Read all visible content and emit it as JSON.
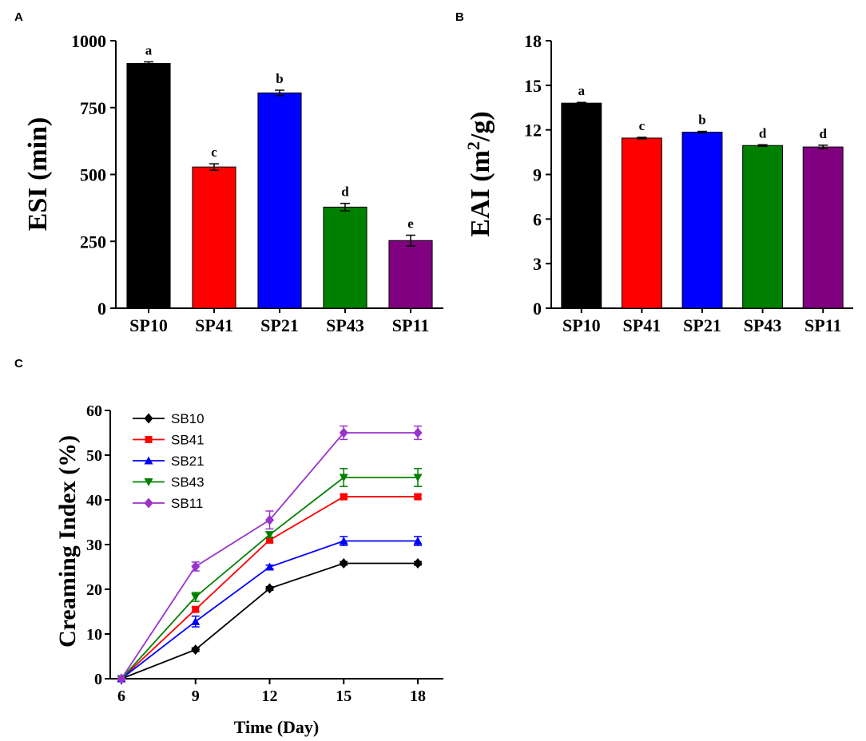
{
  "chart_data": [
    {
      "panel": "A",
      "type": "bar",
      "title": "",
      "ylabel": "ESI (min)",
      "xlabel": "",
      "categories": [
        "SP10",
        "SP41",
        "SP21",
        "SP43",
        "SP11"
      ],
      "values": [
        915,
        528,
        805,
        378,
        253
      ],
      "errors": [
        6,
        12,
        10,
        14,
        20
      ],
      "labels": [
        "a",
        "c",
        "b",
        "d",
        "e"
      ],
      "colors": [
        "#000000",
        "#ff0000",
        "#0000ff",
        "#008000",
        "#800080"
      ],
      "ylim": [
        0,
        1000
      ],
      "yticks": [
        "0",
        "250",
        "500",
        "750",
        "1000"
      ]
    },
    {
      "panel": "B",
      "type": "bar",
      "title": "",
      "ylabel_main": "EAI (m",
      "ylabel_sup": "2",
      "ylabel_end": "/g)",
      "xlabel": "",
      "categories": [
        "SP10",
        "SP41",
        "SP21",
        "SP43",
        "SP11"
      ],
      "values": [
        13.8,
        11.45,
        11.85,
        10.95,
        10.85
      ],
      "errors": [
        0.05,
        0.05,
        0.05,
        0.05,
        0.12
      ],
      "labels": [
        "a",
        "c",
        "b",
        "d",
        "d"
      ],
      "colors": [
        "#000000",
        "#ff0000",
        "#0000ff",
        "#008000",
        "#800080"
      ],
      "ylim": [
        0,
        18
      ],
      "yticks": [
        "0",
        "3",
        "6",
        "9",
        "12",
        "15",
        "18"
      ]
    },
    {
      "panel": "C",
      "type": "line",
      "title": "",
      "xlabel": "Time (Day)",
      "ylabel": "Creaming Index (%)",
      "x": [
        6,
        9,
        12,
        15,
        18
      ],
      "xlim": [
        6,
        18
      ],
      "ylim": [
        0,
        60
      ],
      "xticks": [
        "6",
        "9",
        "12",
        "15",
        "18"
      ],
      "yticks": [
        "0",
        "10",
        "20",
        "30",
        "40",
        "50",
        "60"
      ],
      "legend_position": "top-left",
      "series": [
        {
          "name": "SB10",
          "color": "#000000",
          "marker": "diamond",
          "values": [
            0,
            6.5,
            20.2,
            25.8,
            25.8
          ],
          "errors": [
            0,
            0.4,
            0.4,
            0.4,
            0.4
          ]
        },
        {
          "name": "SB41",
          "color": "#ff0000",
          "marker": "square",
          "values": [
            0,
            15.5,
            31,
            40.7,
            40.7
          ],
          "errors": [
            0,
            0.5,
            0.5,
            0.5,
            0.5
          ]
        },
        {
          "name": "SB21",
          "color": "#0000ff",
          "marker": "triangle-up",
          "values": [
            0,
            12.8,
            25,
            30.8,
            30.8
          ],
          "errors": [
            0,
            1.2,
            0.4,
            1.0,
            1.0
          ]
        },
        {
          "name": "SB43",
          "color": "#008000",
          "marker": "triangle-down",
          "values": [
            0,
            18.3,
            32.2,
            45,
            45
          ],
          "errors": [
            0,
            1.0,
            0.6,
            2.0,
            2.0
          ]
        },
        {
          "name": "SB11",
          "color": "#9933cc",
          "marker": "diamond",
          "values": [
            0,
            25.1,
            35.5,
            55,
            55
          ],
          "errors": [
            0,
            1.0,
            2.0,
            1.5,
            1.5
          ]
        }
      ]
    }
  ]
}
